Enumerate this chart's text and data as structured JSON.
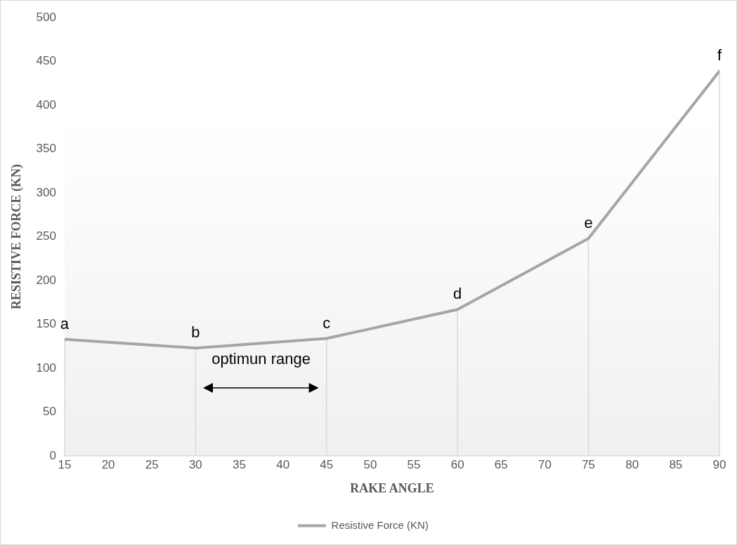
{
  "chart_data": {
    "type": "line",
    "xlabel": "RAKE ANGLE",
    "ylabel": "RESISTIVE FORCE (KN)",
    "x": [
      15,
      30,
      45,
      60,
      75,
      90
    ],
    "series": [
      {
        "name": "Resistive Force (KN)",
        "color": "#a5a5a5",
        "values": [
          133,
          123,
          134,
          167,
          248,
          439
        ]
      }
    ],
    "xlim": [
      15,
      90
    ],
    "xticks": [
      15,
      20,
      25,
      30,
      35,
      40,
      45,
      50,
      55,
      60,
      65,
      70,
      75,
      80,
      85,
      90
    ],
    "ylim": [
      0,
      500
    ],
    "yticks": [
      0,
      50,
      100,
      150,
      200,
      250,
      300,
      350,
      400,
      450,
      500
    ],
    "grid": false,
    "legend": "bottom",
    "marker": "none",
    "line_style": "solid",
    "annotations": [
      {
        "text": "a",
        "x": 15,
        "y": 133
      },
      {
        "text": "b",
        "x": 30,
        "y": 123
      },
      {
        "text": "c",
        "x": 45,
        "y": 134
      },
      {
        "text": "d",
        "x": 60,
        "y": 167
      },
      {
        "text": "e",
        "x": 75,
        "y": 248
      },
      {
        "text": "f",
        "x": 90,
        "y": 439
      },
      "optimun range"
    ]
  }
}
